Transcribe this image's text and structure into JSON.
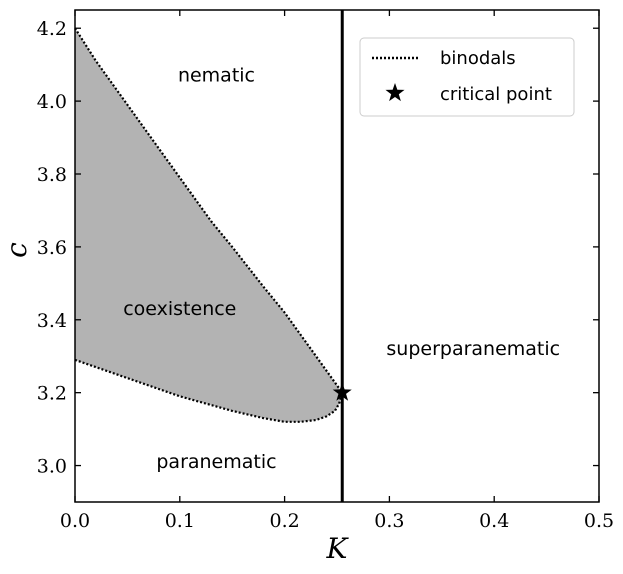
{
  "chart_data": {
    "type": "area",
    "xlabel": "K",
    "ylabel": "c",
    "xlim": [
      0.0,
      0.5
    ],
    "ylim": [
      2.9,
      4.25
    ],
    "xticks": [
      "0.0",
      "0.1",
      "0.2",
      "0.3",
      "0.4",
      "0.5"
    ],
    "yticks": [
      "3.0",
      "3.2",
      "3.4",
      "3.6",
      "3.8",
      "4.0",
      "4.2"
    ],
    "xtick_values": [
      0.0,
      0.1,
      0.2,
      0.3,
      0.4,
      0.5
    ],
    "ytick_values": [
      3.0,
      3.2,
      3.4,
      3.6,
      3.8,
      4.0,
      4.2
    ],
    "grid": false,
    "legend_position": "top-right",
    "fill_color": "#b3b3b3",
    "series": [
      {
        "name": "binodals",
        "style": "dotted",
        "upper": {
          "x": [
            0.0,
            0.02,
            0.05,
            0.08,
            0.1,
            0.13,
            0.15,
            0.18,
            0.2,
            0.22,
            0.235,
            0.245,
            0.25,
            0.255
          ],
          "y": [
            4.2,
            4.11,
            3.99,
            3.87,
            3.79,
            3.67,
            3.6,
            3.49,
            3.42,
            3.34,
            3.28,
            3.24,
            3.22,
            3.2
          ]
        },
        "lower": {
          "x": [
            0.0,
            0.05,
            0.1,
            0.15,
            0.18,
            0.2,
            0.215,
            0.23,
            0.24,
            0.248,
            0.252,
            0.255
          ],
          "y": [
            3.29,
            3.24,
            3.19,
            3.15,
            3.13,
            3.12,
            3.12,
            3.125,
            3.135,
            3.15,
            3.17,
            3.2
          ]
        }
      }
    ],
    "critical_point": {
      "name": "critical point",
      "x": 0.255,
      "y": 3.2
    },
    "vertical_line": {
      "x": 0.255
    },
    "regions": [
      {
        "label": "nematic",
        "x": 0.135,
        "y": 4.07
      },
      {
        "label": "coexistence",
        "x": 0.1,
        "y": 3.43
      },
      {
        "label": "paranematic",
        "x": 0.135,
        "y": 3.01
      },
      {
        "label": "superparanematic",
        "x": 0.38,
        "y": 3.32
      }
    ],
    "legend": [
      {
        "label": "binodals",
        "marker": "dotted-line"
      },
      {
        "label": "critical point",
        "marker": "star"
      }
    ]
  }
}
